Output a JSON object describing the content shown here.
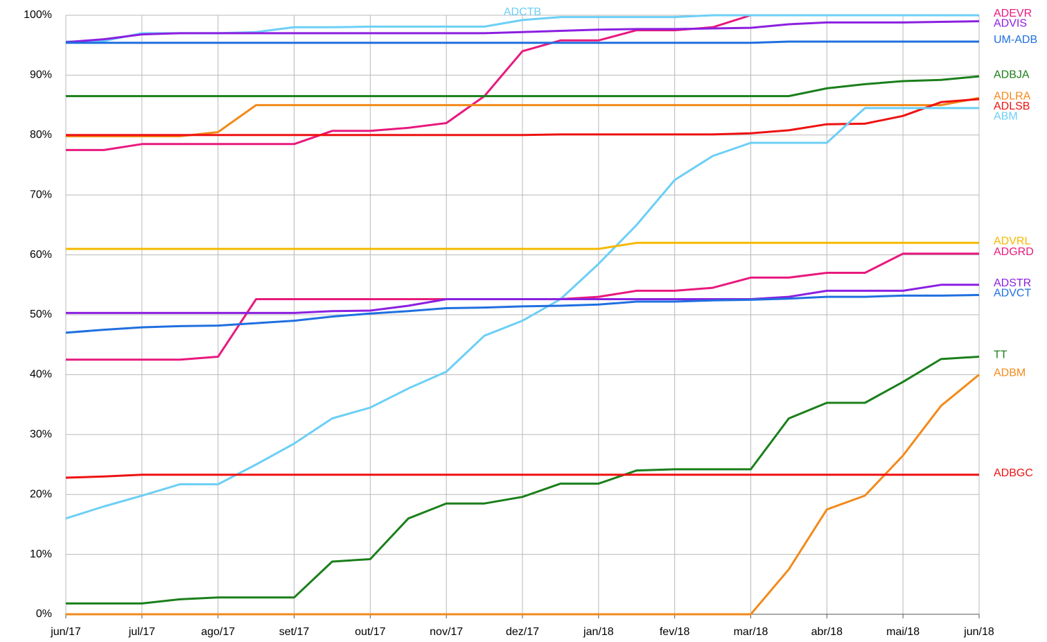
{
  "chart_data": {
    "type": "line",
    "categories": [
      "jun/17",
      null,
      "jul/17",
      null,
      "ago/17",
      null,
      "set/17",
      null,
      "out/17",
      null,
      "nov/17",
      null,
      "dez/17",
      null,
      "jan/18",
      null,
      "fev/18",
      null,
      "mar/18",
      null,
      "abr/18",
      null,
      "mai/18",
      null,
      "jun/18"
    ],
    "ylim": [
      0,
      100
    ],
    "yticks": [
      {
        "value": 0,
        "label": "0%"
      },
      {
        "value": 10,
        "label": "10%"
      },
      {
        "value": 20,
        "label": "20%"
      },
      {
        "value": 30,
        "label": "30%"
      },
      {
        "value": 40,
        "label": "40%"
      },
      {
        "value": 50,
        "label": "50%"
      },
      {
        "value": 60,
        "label": "60%"
      },
      {
        "value": 70,
        "label": "70%"
      },
      {
        "value": 80,
        "label": "80%"
      },
      {
        "value": 90,
        "label": "90%"
      },
      {
        "value": 100,
        "label": "100%"
      }
    ],
    "grid": true,
    "series": [
      {
        "name": "ADEVR",
        "color": "#e8197d",
        "values": [
          77.5,
          77.5,
          78.5,
          78.5,
          78.5,
          78.5,
          78.5,
          80.7,
          80.7,
          81.2,
          82,
          86.5,
          94,
          95.8,
          95.8,
          97.5,
          97.5,
          98,
          100,
          100,
          100,
          100,
          100,
          100,
          100
        ]
      },
      {
        "name": "ADCTB",
        "color": "#6ccff6",
        "values": [
          95.6,
          95.7,
          97,
          97,
          97,
          97.2,
          98,
          98,
          98.1,
          98.1,
          98.1,
          98.1,
          99.2,
          99.7,
          99.7,
          99.7,
          99.7,
          100,
          100,
          100,
          100,
          100,
          100,
          100,
          100
        ]
      },
      {
        "name": "ADVIS",
        "color": "#8b1fe0",
        "values": [
          95.5,
          96,
          96.8,
          97,
          97,
          97,
          97,
          97,
          97,
          97,
          97,
          97,
          97.2,
          97.4,
          97.6,
          97.7,
          97.7,
          97.8,
          97.9,
          98.5,
          98.8,
          98.8,
          98.8,
          98.9,
          99
        ]
      },
      {
        "name": "UM-ADB",
        "color": "#1f6fe0",
        "values": [
          95.4,
          95.4,
          95.4,
          95.4,
          95.4,
          95.4,
          95.4,
          95.4,
          95.4,
          95.4,
          95.4,
          95.4,
          95.4,
          95.4,
          95.4,
          95.4,
          95.4,
          95.4,
          95.4,
          95.6,
          95.6,
          95.6,
          95.6,
          95.6,
          95.6
        ]
      },
      {
        "name": "ADBJA",
        "color": "#1a7f1a",
        "values": [
          86.5,
          86.5,
          86.5,
          86.5,
          86.5,
          86.5,
          86.5,
          86.5,
          86.5,
          86.5,
          86.5,
          86.5,
          86.5,
          86.5,
          86.5,
          86.5,
          86.5,
          86.5,
          86.5,
          86.5,
          87.8,
          88.5,
          89,
          89.2,
          89.8
        ]
      },
      {
        "name": "ADLRA",
        "color": "#f28a1a",
        "values": [
          79.8,
          79.8,
          79.8,
          79.8,
          80.5,
          85,
          85,
          85,
          85,
          85,
          85,
          85,
          85,
          85,
          85,
          85,
          85,
          85,
          85,
          85,
          85,
          85,
          85,
          85,
          86.2
        ]
      },
      {
        "name": "ADLSB",
        "color": "#ee1111",
        "values": [
          80,
          80,
          80,
          80,
          80,
          80,
          80,
          80,
          80,
          80,
          80,
          80,
          80,
          80.1,
          80.1,
          80.1,
          80.1,
          80.1,
          80.3,
          80.8,
          81.8,
          81.9,
          83.2,
          85.5,
          86
        ]
      },
      {
        "name": "ABM",
        "color": "#6ccff6",
        "values": [
          16,
          18,
          19.8,
          21.7,
          21.7,
          25,
          28.5,
          32.7,
          34.5,
          37.7,
          40.5,
          46.5,
          49,
          52.6,
          58.5,
          65,
          72.5,
          76.5,
          78.7,
          78.7,
          78.7,
          84.5,
          84.5,
          84.5,
          84.5
        ]
      },
      {
        "name": "ADVRL",
        "color": "#f5b800",
        "values": [
          61,
          61,
          61,
          61,
          61,
          61,
          61,
          61,
          61,
          61,
          61,
          61,
          61,
          61,
          61,
          62,
          62,
          62,
          62,
          62,
          62,
          62,
          62,
          62,
          62
        ]
      },
      {
        "name": "ADGRD",
        "color": "#e8197d",
        "values": [
          42.5,
          42.5,
          42.5,
          42.5,
          43,
          52.6,
          52.6,
          52.6,
          52.6,
          52.6,
          52.6,
          52.6,
          52.6,
          52.6,
          53,
          54,
          54,
          54.5,
          56.2,
          56.2,
          57,
          57,
          60.2,
          60.2,
          60.2
        ]
      },
      {
        "name": "ADSTR",
        "color": "#8b1fe0",
        "values": [
          50.3,
          50.3,
          50.3,
          50.3,
          50.3,
          50.3,
          50.3,
          50.6,
          50.7,
          51.5,
          52.6,
          52.6,
          52.6,
          52.6,
          52.6,
          52.6,
          52.6,
          52.6,
          52.6,
          53,
          54,
          54,
          54,
          55,
          55
        ]
      },
      {
        "name": "ADVCT",
        "color": "#1f6fe0",
        "values": [
          47,
          47.5,
          47.9,
          48.1,
          48.2,
          48.6,
          49,
          49.7,
          50.2,
          50.6,
          51.1,
          51.2,
          51.4,
          51.5,
          51.7,
          52.2,
          52.2,
          52.4,
          52.5,
          52.7,
          53,
          53,
          53.2,
          53.2,
          53.3
        ]
      },
      {
        "name": "TT",
        "color": "#1a7f1a",
        "values": [
          1.8,
          1.8,
          1.8,
          2.5,
          2.8,
          2.8,
          2.8,
          8.8,
          9.2,
          16,
          18.5,
          18.5,
          19.6,
          21.8,
          21.8,
          24,
          24.2,
          24.2,
          24.2,
          32.7,
          35.3,
          35.3,
          38.8,
          42.6,
          43
        ]
      },
      {
        "name": "ADBM",
        "color": "#f28a1a",
        "values": [
          0,
          0,
          0,
          0,
          0,
          0,
          0,
          0,
          0,
          0,
          0,
          0,
          0,
          0,
          0,
          0,
          0,
          0,
          0,
          7.5,
          17.5,
          19.8,
          26.5,
          34.8,
          40
        ]
      },
      {
        "name": "ADBGC",
        "color": "#ee1111",
        "values": [
          22.8,
          23,
          23.3,
          23.3,
          23.3,
          23.3,
          23.3,
          23.3,
          23.3,
          23.3,
          23.3,
          23.3,
          23.3,
          23.3,
          23.3,
          23.3,
          23.3,
          23.3,
          23.3,
          23.3,
          23.3,
          23.3,
          23.3,
          23.3,
          23.3
        ]
      }
    ]
  }
}
